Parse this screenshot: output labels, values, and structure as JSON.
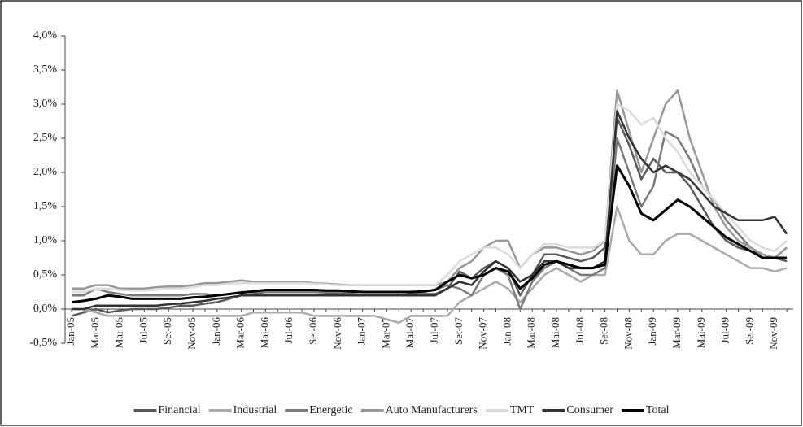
{
  "chart_data": {
    "type": "line",
    "categories": [
      "Jan-05",
      null,
      "Mar-05",
      null,
      "Mai-05",
      null,
      "Jul-05",
      null,
      "Set-05",
      null,
      "Nov-05",
      null,
      "Jan-06",
      null,
      "Mar-06",
      null,
      "Mai-06",
      null,
      "Jul-06",
      null,
      "Set-06",
      null,
      "Nov-06",
      null,
      "Jan-07",
      null,
      "Mar-07",
      null,
      "Mai-07",
      null,
      "Jul-07",
      null,
      "Set-07",
      null,
      "Nov-07",
      null,
      "Jan-08",
      null,
      "Mar-08",
      null,
      "Mai-08",
      null,
      "Jul-08",
      null,
      "Set-08",
      null,
      "Nov-08",
      null,
      "Jan-09",
      null,
      "Mar-09",
      null,
      "Mai-09",
      null,
      "Jul-09",
      null,
      "Set-09",
      null,
      "Nov-09",
      null
    ],
    "series": [
      {
        "name": "Financial",
        "color": "#5a5a5a",
        "values": [
          -0.1,
          -0.05,
          0.0,
          -0.05,
          -0.02,
          0.0,
          0.0,
          0.0,
          0.02,
          0.05,
          0.05,
          0.08,
          0.1,
          0.15,
          0.2,
          0.22,
          0.25,
          0.25,
          0.25,
          0.25,
          0.25,
          0.24,
          0.24,
          0.23,
          0.2,
          0.2,
          0.2,
          0.2,
          0.22,
          0.22,
          0.22,
          0.3,
          0.55,
          0.45,
          0.6,
          0.7,
          0.6,
          0.2,
          0.5,
          0.8,
          0.8,
          0.75,
          0.7,
          0.75,
          0.9,
          2.8,
          2.4,
          1.9,
          2.2,
          2.0,
          2.0,
          1.8,
          1.5,
          1.2,
          1.0,
          0.9,
          0.85,
          0.8,
          0.75,
          0.7
        ]
      },
      {
        "name": "Industrial",
        "color": "#ababab",
        "values": [
          0.0,
          0.0,
          -0.05,
          -0.1,
          -0.1,
          -0.1,
          -0.1,
          -0.1,
          -0.1,
          -0.1,
          -0.1,
          -0.1,
          -0.1,
          -0.1,
          -0.1,
          -0.05,
          -0.05,
          -0.05,
          -0.05,
          -0.05,
          -0.1,
          -0.1,
          -0.1,
          -0.1,
          -0.1,
          -0.1,
          -0.15,
          -0.2,
          -0.1,
          -0.1,
          -0.1,
          -0.1,
          0.1,
          0.2,
          0.3,
          0.4,
          0.3,
          0.1,
          0.3,
          0.5,
          0.6,
          0.5,
          0.4,
          0.5,
          0.5,
          1.5,
          1.0,
          0.8,
          0.8,
          1.0,
          1.1,
          1.1,
          1.0,
          0.9,
          0.8,
          0.7,
          0.6,
          0.6,
          0.55,
          0.6
        ]
      },
      {
        "name": "Energetic",
        "color": "#7a7a7a",
        "values": [
          0.2,
          0.2,
          0.3,
          0.25,
          0.22,
          0.2,
          0.2,
          0.2,
          0.2,
          0.2,
          0.22,
          0.22,
          0.2,
          0.22,
          0.25,
          0.25,
          0.25,
          0.25,
          0.25,
          0.25,
          0.25,
          0.25,
          0.25,
          0.25,
          0.25,
          0.25,
          0.25,
          0.25,
          0.25,
          0.25,
          0.28,
          0.35,
          0.3,
          0.2,
          0.5,
          0.6,
          0.5,
          0.0,
          0.4,
          0.6,
          0.7,
          0.6,
          0.5,
          0.5,
          0.6,
          2.5,
          2.0,
          1.5,
          1.8,
          2.6,
          2.5,
          2.2,
          1.8,
          1.6,
          1.3,
          1.1,
          0.9,
          0.8,
          0.75,
          0.9
        ]
      },
      {
        "name": "Auto Manufacturers",
        "color": "#989898",
        "values": [
          0.3,
          0.3,
          0.35,
          0.35,
          0.3,
          0.3,
          0.3,
          0.32,
          0.33,
          0.33,
          0.35,
          0.38,
          0.38,
          0.4,
          0.42,
          0.4,
          0.4,
          0.4,
          0.4,
          0.4,
          0.38,
          0.37,
          0.36,
          0.35,
          0.35,
          0.35,
          0.35,
          0.35,
          0.35,
          0.35,
          0.35,
          0.4,
          0.6,
          0.7,
          0.9,
          1.0,
          1.0,
          0.6,
          0.8,
          0.9,
          0.9,
          0.85,
          0.8,
          0.85,
          1.0,
          3.2,
          2.6,
          2.0,
          2.5,
          3.0,
          3.2,
          2.5,
          2.0,
          1.5,
          1.2,
          1.0,
          0.9,
          0.8,
          0.75,
          0.9
        ]
      },
      {
        "name": "TMT",
        "color": "#dcdcdc",
        "values": [
          0.25,
          0.25,
          0.3,
          0.3,
          0.28,
          0.27,
          0.27,
          0.28,
          0.3,
          0.3,
          0.32,
          0.35,
          0.35,
          0.37,
          0.38,
          0.38,
          0.38,
          0.38,
          0.38,
          0.38,
          0.37,
          0.36,
          0.35,
          0.35,
          0.35,
          0.35,
          0.35,
          0.35,
          0.35,
          0.35,
          0.35,
          0.5,
          0.7,
          0.8,
          0.9,
          0.9,
          0.8,
          0.6,
          0.8,
          0.95,
          0.95,
          0.9,
          0.9,
          0.9,
          1.0,
          3.0,
          2.9,
          2.7,
          2.8,
          2.5,
          2.3,
          2.0,
          1.8,
          1.6,
          1.4,
          1.2,
          1.0,
          0.9,
          0.85,
          1.0
        ]
      },
      {
        "name": "Consumer",
        "color": "#333333",
        "values": [
          0.0,
          0.0,
          0.05,
          0.05,
          0.05,
          0.05,
          0.05,
          0.05,
          0.07,
          0.08,
          0.1,
          0.12,
          0.15,
          0.17,
          0.2,
          0.2,
          0.2,
          0.2,
          0.2,
          0.2,
          0.2,
          0.2,
          0.2,
          0.2,
          0.2,
          0.2,
          0.2,
          0.2,
          0.2,
          0.2,
          0.2,
          0.3,
          0.4,
          0.35,
          0.55,
          0.7,
          0.6,
          0.4,
          0.5,
          0.7,
          0.7,
          0.6,
          0.6,
          0.6,
          0.7,
          2.9,
          2.5,
          2.2,
          2.0,
          2.1,
          2.0,
          1.9,
          1.7,
          1.5,
          1.4,
          1.3,
          1.3,
          1.3,
          1.35,
          1.1
        ]
      },
      {
        "name": "Total",
        "color": "#000000",
        "values": [
          0.1,
          0.12,
          0.15,
          0.2,
          0.18,
          0.15,
          0.15,
          0.15,
          0.15,
          0.15,
          0.17,
          0.18,
          0.2,
          0.22,
          0.24,
          0.26,
          0.28,
          0.28,
          0.28,
          0.28,
          0.28,
          0.27,
          0.27,
          0.26,
          0.25,
          0.25,
          0.25,
          0.25,
          0.25,
          0.26,
          0.28,
          0.4,
          0.5,
          0.45,
          0.5,
          0.6,
          0.55,
          0.3,
          0.45,
          0.65,
          0.7,
          0.65,
          0.6,
          0.6,
          0.65,
          2.1,
          1.8,
          1.4,
          1.3,
          1.45,
          1.6,
          1.5,
          1.35,
          1.2,
          1.05,
          0.95,
          0.85,
          0.75,
          0.75,
          0.75
        ]
      }
    ],
    "ylim": [
      -0.5,
      4.0
    ],
    "yticks": [
      {
        "value": -0.5,
        "label": "-0,5%"
      },
      {
        "value": 0,
        "label": "0,0%"
      },
      {
        "value": 0.5,
        "label": "0,5%"
      },
      {
        "value": 1.0,
        "label": "1,0%"
      },
      {
        "value": 1.5,
        "label": "1,5%"
      },
      {
        "value": 2.0,
        "label": "2,0%"
      },
      {
        "value": 2.5,
        "label": "2,5%"
      },
      {
        "value": 3.0,
        "label": "3,0%"
      },
      {
        "value": 3.5,
        "label": "3,5%"
      },
      {
        "value": 4.0,
        "label": "4,0%"
      }
    ],
    "grid": false,
    "legend": "bottom"
  }
}
